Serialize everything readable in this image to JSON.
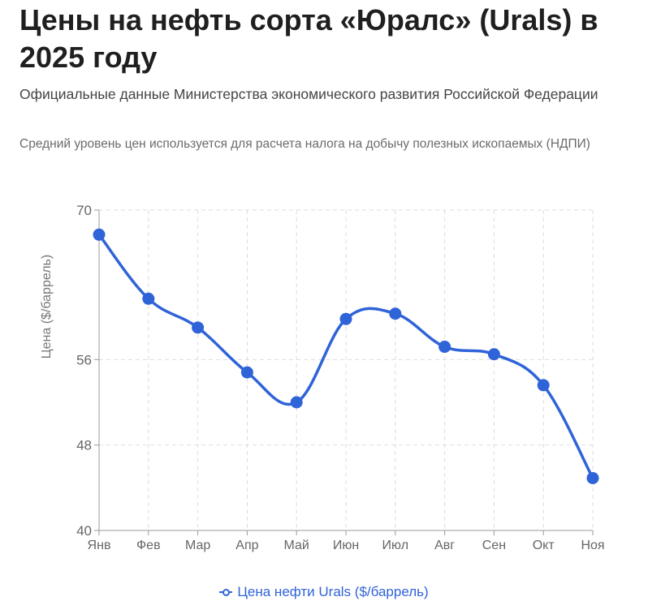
{
  "header": {
    "title": "Цены на нефть сорта «Юралс» (Urals) в 2025 году",
    "subtitle": "Официальные данные Министерства экономического развития Российской Федерации",
    "note": "Средний уровень цен используется для расчета налога на добычу полезных ископаемых (НДПИ)"
  },
  "colors": {
    "series": "#2f63d8",
    "grid": "#dddddd",
    "axis": "#999999",
    "tick_text": "#666666"
  },
  "chart_data": {
    "type": "line",
    "title": "Цены на нефть сорта «Юралс» (Urals) в 2025 году",
    "xlabel": "",
    "ylabel": "Цена ($/баррель)",
    "categories": [
      "Янв",
      "Фев",
      "Мар",
      "Апр",
      "Май",
      "Июн",
      "Июл",
      "Авг",
      "Сен",
      "Окт",
      "Ноя"
    ],
    "yticks": [
      40,
      48,
      56,
      70
    ],
    "ylim": [
      40,
      70
    ],
    "grid": true,
    "legend_position": "bottom",
    "series": [
      {
        "name": "Цена нефти Urals ($/баррель)",
        "values": [
          67.7,
          61.7,
          59.0,
          54.8,
          52.0,
          59.8,
          60.3,
          57.2,
          56.5,
          53.6,
          44.9
        ]
      }
    ]
  }
}
